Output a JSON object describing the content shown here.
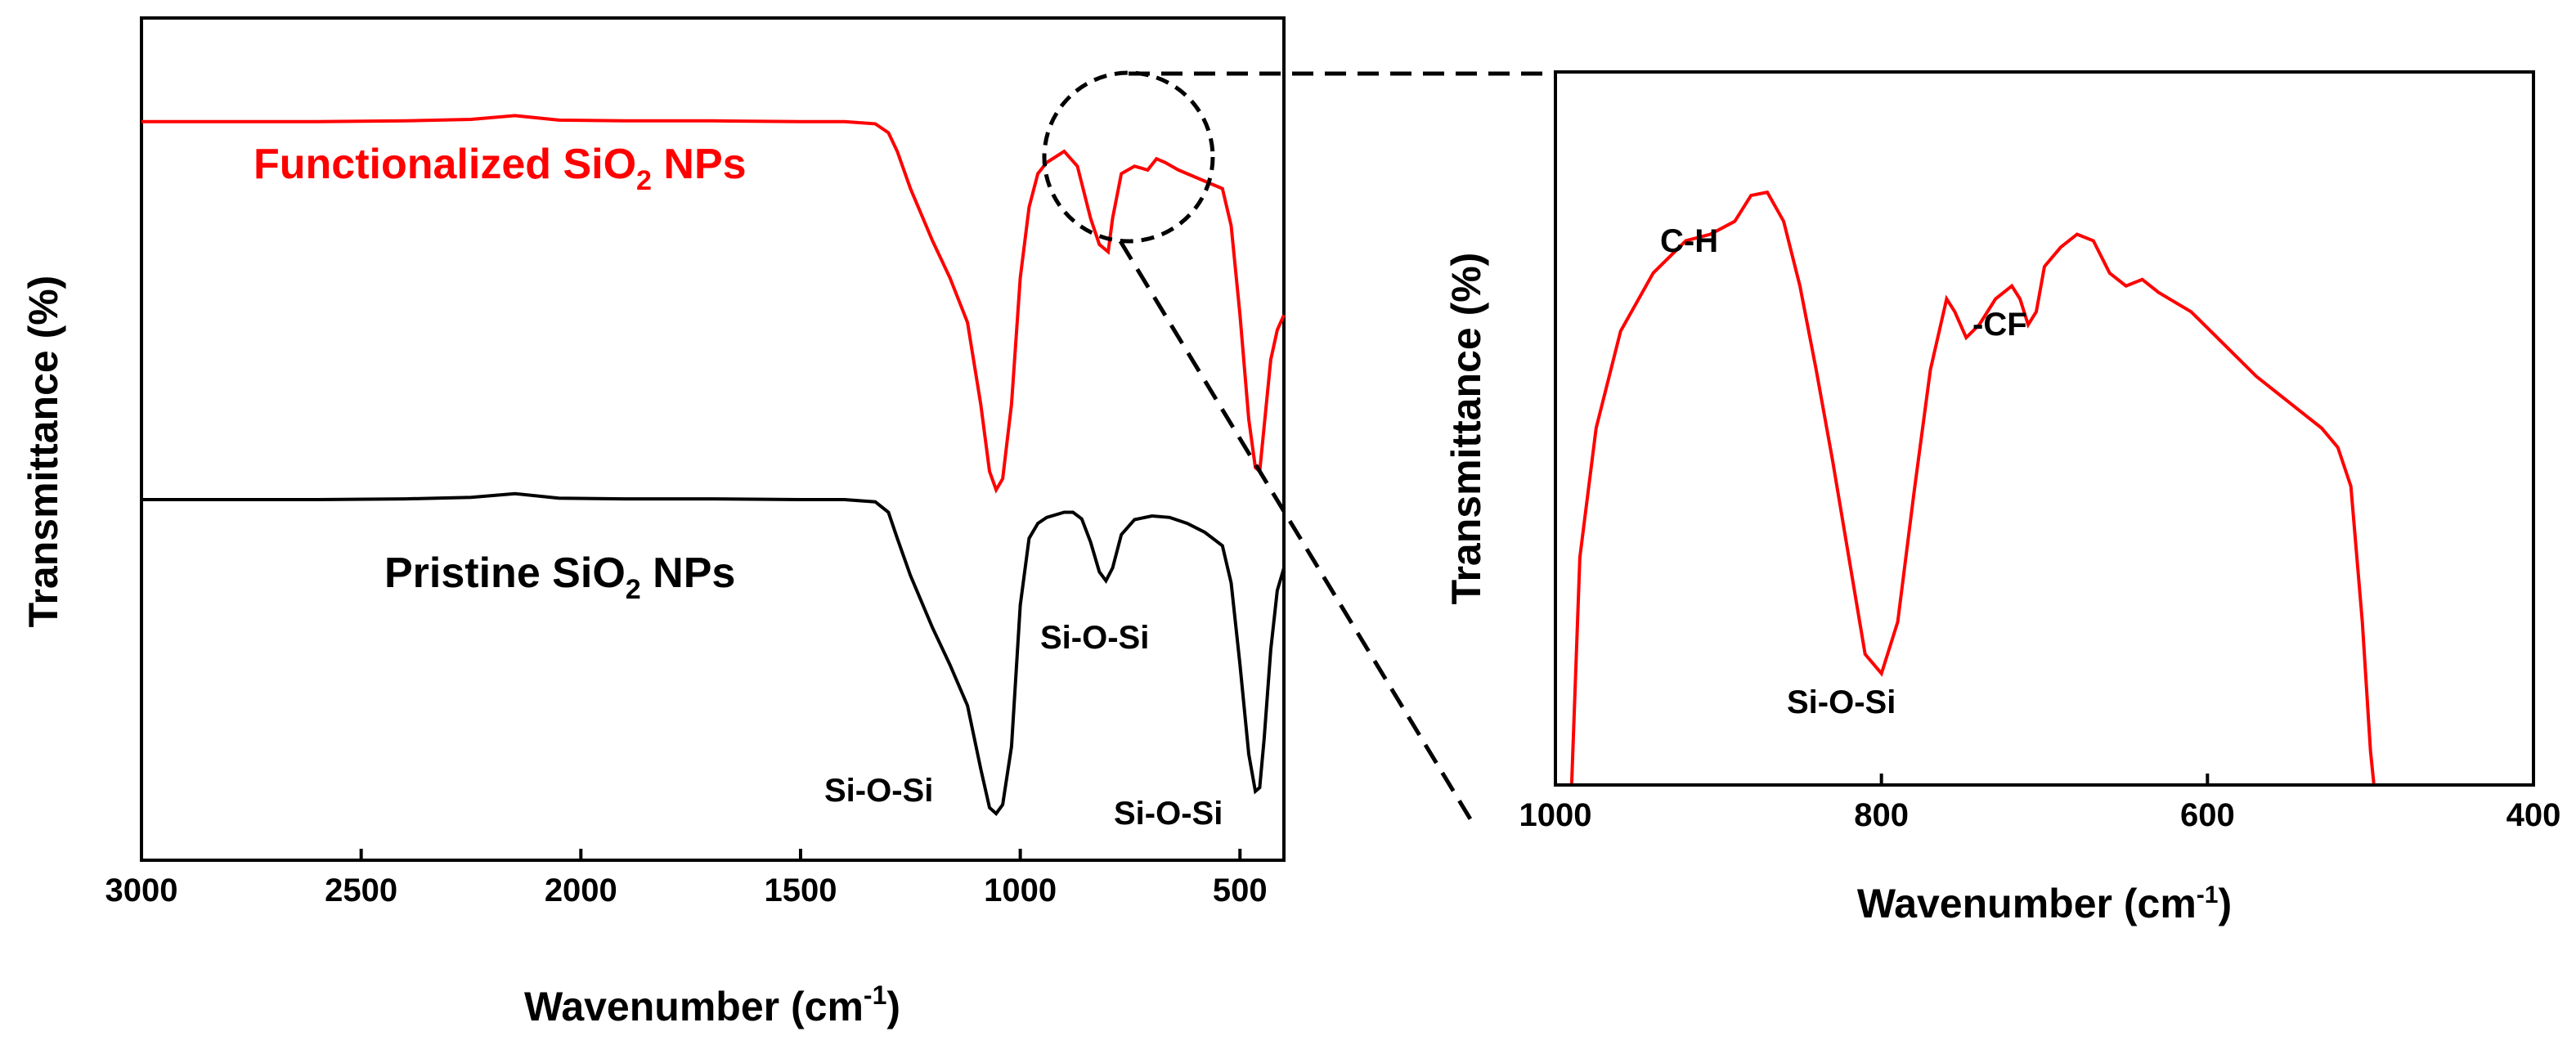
{
  "chart_data": [
    {
      "type": "line",
      "title": "",
      "xlabel": "Wavenumber (cm",
      "xlabel_sup": "-1",
      "xlabel_close": ")",
      "ylabel": "Transmittance (%)",
      "xlim": [
        3000,
        400
      ],
      "ylim": [
        0,
        100
      ],
      "x_ticks": [
        "3000",
        "2500",
        "2000",
        "1500",
        "1000",
        "500"
      ],
      "series": [
        {
          "name": "Functionalized SiO2 NPs",
          "color": "#ff0000",
          "label_parts": [
            "Functionalized SiO",
            "2",
            " NPs"
          ],
          "x": [
            3000,
            2600,
            2400,
            2250,
            2150,
            2050,
            1900,
            1700,
            1500,
            1400,
            1330,
            1300,
            1280,
            1250,
            1200,
            1160,
            1120,
            1090,
            1070,
            1055,
            1040,
            1020,
            1000,
            980,
            960,
            940,
            900,
            870,
            840,
            820,
            800,
            790,
            770,
            740,
            710,
            690,
            670,
            640,
            600,
            560,
            540,
            520,
            500,
            480,
            465,
            455,
            445,
            430,
            415,
            400
          ],
          "y": [
            93.0,
            93.0,
            93.1,
            93.3,
            93.8,
            93.2,
            93.1,
            93.1,
            93.0,
            93.0,
            92.7,
            91.5,
            89.0,
            84.0,
            77.0,
            72.0,
            66.0,
            55.0,
            46.0,
            43.5,
            45.0,
            55.0,
            72.0,
            81.5,
            86.0,
            87.5,
            89.0,
            87.0,
            80.0,
            76.5,
            75.5,
            80.0,
            86.0,
            87.0,
            86.5,
            88.0,
            87.5,
            86.5,
            85.5,
            84.5,
            84.0,
            79.0,
            67.0,
            53.0,
            46.5,
            46.0,
            52.0,
            61.0,
            65.0,
            67.0
          ]
        },
        {
          "name": "Pristine SiO2 NPs",
          "color": "#000000",
          "label_parts": [
            "Pristine SiO",
            "2",
            " NPs"
          ],
          "x": [
            3000,
            2600,
            2400,
            2250,
            2150,
            2050,
            1900,
            1700,
            1500,
            1400,
            1330,
            1300,
            1280,
            1250,
            1200,
            1160,
            1120,
            1090,
            1070,
            1055,
            1040,
            1020,
            1000,
            980,
            960,
            940,
            900,
            880,
            860,
            840,
            820,
            805,
            790,
            770,
            740,
            700,
            660,
            620,
            580,
            540,
            520,
            500,
            480,
            465,
            455,
            445,
            430,
            415,
            400
          ],
          "y": [
            42.2,
            42.2,
            42.3,
            42.5,
            43.0,
            42.4,
            42.3,
            42.3,
            42.2,
            42.2,
            41.9,
            40.5,
            37.0,
            32.0,
            25.0,
            20.0,
            14.5,
            6.0,
            0.8,
            0.0,
            1.2,
            9.0,
            28.0,
            37.0,
            39.0,
            39.8,
            40.5,
            40.5,
            39.6,
            36.5,
            32.5,
            31.3,
            33.0,
            37.5,
            39.5,
            40.0,
            39.8,
            39.0,
            37.8,
            36.0,
            31.0,
            20.0,
            8.0,
            3.0,
            3.5,
            10.0,
            22.0,
            30.0,
            33.0
          ]
        }
      ],
      "annotations": [
        {
          "text": "Si-O-Si",
          "near_x": 1050
        },
        {
          "text": "Si-O-Si",
          "near_x": 800
        },
        {
          "text": "Si-O-Si",
          "near_x": 460
        }
      ]
    },
    {
      "type": "line",
      "title": "",
      "xlabel": "Wavenumber (cm",
      "xlabel_sup": "-1",
      "xlabel_close": ")",
      "ylabel": "Transmittance (%)",
      "xlim": [
        1000,
        400
      ],
      "ylim": [
        0,
        100
      ],
      "x_ticks": [
        "1000",
        "800",
        "600",
        "400"
      ],
      "series": [
        {
          "name": "Functionalized SiO2 NPs (zoom)",
          "color": "#ff0000",
          "x": [
            990,
            985,
            975,
            960,
            940,
            920,
            905,
            890,
            880,
            870,
            860,
            850,
            840,
            830,
            820,
            810,
            800,
            790,
            780,
            770,
            760,
            755,
            748,
            740,
            730,
            720,
            715,
            710,
            705,
            700,
            690,
            680,
            670,
            660,
            650,
            640,
            630,
            610,
            590,
            570,
            555,
            540,
            530,
            520,
            512,
            505,
            500,
            498
          ],
          "y": [
            0.0,
            35.0,
            55.0,
            70.0,
            79.0,
            84.0,
            85.0,
            87.0,
            91.0,
            91.5,
            87.0,
            77.0,
            64.0,
            50.0,
            35.0,
            20.0,
            17.0,
            25.0,
            45.0,
            64.0,
            75.0,
            73.0,
            69.0,
            71.0,
            75.0,
            77.0,
            75.0,
            71.0,
            73.0,
            80.0,
            83.0,
            85.0,
            84.0,
            79.0,
            77.0,
            78.0,
            76.0,
            73.0,
            68.0,
            63.0,
            60.0,
            57.0,
            55.0,
            52.0,
            46.0,
            25.0,
            5.0,
            0.0
          ]
        }
      ],
      "annotations": [
        {
          "text": "C-H",
          "near_x": 915
        },
        {
          "text": "Si-O-Si",
          "near_x": 810
        },
        {
          "text": "-CF",
          "near_x": 730
        }
      ]
    }
  ]
}
